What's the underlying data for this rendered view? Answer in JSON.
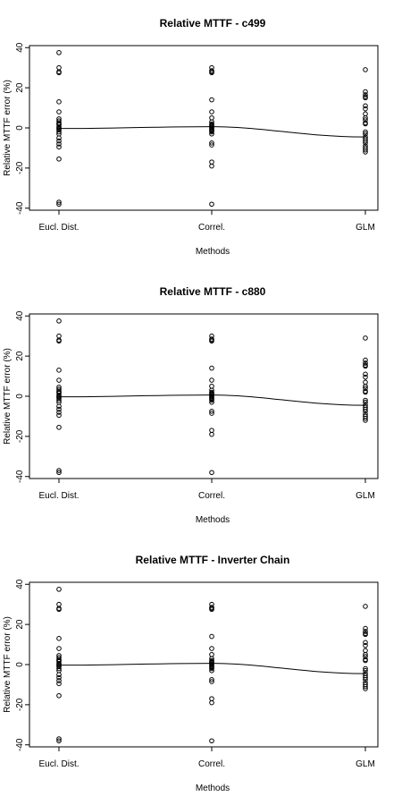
{
  "chart_data": [
    {
      "type": "scatter",
      "title": "Relative MTTF - c499",
      "xlabel": "Methods",
      "ylabel": "Relative MTTF error (%)",
      "categories": [
        "Eucl. Dist.",
        "Correl.",
        "GLM"
      ],
      "yticks": [
        "-40",
        "-20",
        "0",
        "20",
        "40"
      ],
      "ylim": [
        -41,
        41
      ],
      "series": [
        {
          "category": "Eucl. Dist.",
          "values": [
            37.5,
            30,
            28,
            27.5,
            13,
            8,
            4.5,
            3.5,
            2.5,
            2,
            1.5,
            0.5,
            0,
            -0.5,
            -1,
            -2,
            -3,
            -5,
            -6.5,
            -8,
            -9.5,
            -15.5,
            -37,
            -38
          ]
        },
        {
          "category": "Correl.",
          "values": [
            30,
            28.5,
            28,
            27.5,
            14,
            8,
            5,
            3,
            2,
            1.5,
            1,
            0.5,
            0,
            -0.5,
            -1,
            -1.5,
            -2,
            -3,
            -7.5,
            -8.5,
            -17,
            -19,
            -38
          ]
        },
        {
          "category": "GLM",
          "values": [
            29,
            18,
            16.5,
            15.5,
            15,
            11,
            9.5,
            7,
            5,
            4,
            2.5,
            2,
            -2,
            -3,
            -4.5,
            -5.5,
            -6.5,
            -7.5,
            -9,
            -10,
            -11,
            -12
          ]
        }
      ],
      "trend": {
        "values": [
          -0.3,
          0.6,
          -4.5
        ]
      }
    },
    {
      "type": "scatter",
      "title": "Relative MTTF - c880",
      "xlabel": "Methods",
      "ylabel": "Relative MTTF error (%)",
      "categories": [
        "Eucl. Dist.",
        "Correl.",
        "GLM"
      ],
      "yticks": [
        "-40",
        "-20",
        "0",
        "20",
        "40"
      ],
      "ylim": [
        -41,
        41
      ],
      "series": [
        {
          "category": "Eucl. Dist.",
          "values": [
            37.5,
            30,
            28,
            27.5,
            13,
            8,
            4.5,
            3.5,
            2.5,
            2,
            1.5,
            0.5,
            0,
            -0.5,
            -1,
            -2,
            -3,
            -5,
            -6.5,
            -8,
            -9.5,
            -15.5,
            -37,
            -38
          ]
        },
        {
          "category": "Correl.",
          "values": [
            30,
            28.5,
            28,
            27.5,
            14,
            8,
            5,
            3,
            2,
            1.5,
            1,
            0.5,
            0,
            -0.5,
            -1,
            -1.5,
            -2,
            -3,
            -7.5,
            -8.5,
            -17,
            -19,
            -38
          ]
        },
        {
          "category": "GLM",
          "values": [
            29,
            18,
            16.5,
            15.5,
            15,
            11,
            9.5,
            7,
            5,
            4,
            2.5,
            2,
            -2,
            -3,
            -4.5,
            -5.5,
            -6.5,
            -7.5,
            -9,
            -10,
            -11,
            -12
          ]
        }
      ],
      "trend": {
        "values": [
          -0.3,
          0.6,
          -4.5
        ]
      }
    },
    {
      "type": "scatter",
      "title": "Relative MTTF - Inverter Chain",
      "xlabel": "Methods",
      "ylabel": "Relative MTTF error (%)",
      "categories": [
        "Eucl. Dist.",
        "Correl.",
        "GLM"
      ],
      "yticks": [
        "-40",
        "-20",
        "0",
        "20",
        "40"
      ],
      "ylim": [
        -41,
        41
      ],
      "series": [
        {
          "category": "Eucl. Dist.",
          "values": [
            37.5,
            30,
            28,
            27.5,
            13,
            8,
            4.5,
            3.5,
            2.5,
            2,
            1.5,
            0.5,
            0,
            -0.5,
            -1,
            -2,
            -3,
            -5,
            -6.5,
            -8,
            -9.5,
            -15.5,
            -37,
            -38
          ]
        },
        {
          "category": "Correl.",
          "values": [
            30,
            28.5,
            28,
            27.5,
            14,
            8,
            5,
            3,
            2,
            1.5,
            1,
            0.5,
            0,
            -0.5,
            -1,
            -1.5,
            -2,
            -3,
            -7.5,
            -8.5,
            -17,
            -19,
            -38
          ]
        },
        {
          "category": "GLM",
          "values": [
            29,
            18,
            16.5,
            15.5,
            15,
            11,
            9.5,
            7,
            5,
            4,
            2.5,
            2,
            -2,
            -3,
            -4.5,
            -5.5,
            -6.5,
            -7.5,
            -9,
            -10,
            -11,
            -12
          ]
        }
      ],
      "trend": {
        "values": [
          -0.3,
          0.6,
          -4.5
        ]
      }
    }
  ]
}
